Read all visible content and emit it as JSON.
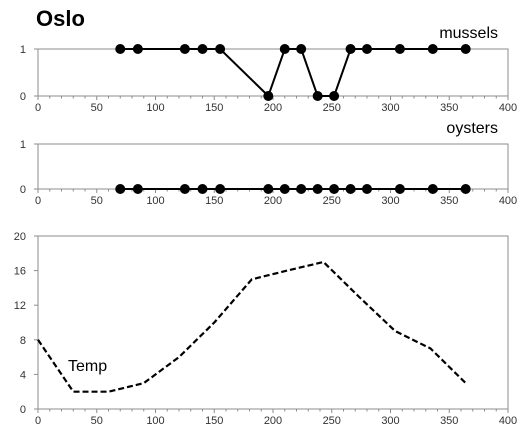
{
  "title": "Oslo",
  "chart_data": [
    {
      "type": "line",
      "name": "mussels",
      "label": "mussels",
      "x": [
        70,
        85,
        125,
        140,
        155,
        196,
        210,
        224,
        238,
        252,
        266,
        280,
        308,
        336,
        364
      ],
      "y": [
        1,
        1,
        1,
        1,
        1,
        0,
        1,
        1,
        0,
        0,
        1,
        1,
        1,
        1,
        1
      ],
      "xlim": [
        0,
        400
      ],
      "ylim": [
        0,
        1
      ],
      "xticks": [
        0,
        50,
        100,
        150,
        200,
        250,
        300,
        350,
        400
      ],
      "yticks": [
        0,
        1
      ],
      "line_style": "solid",
      "markers": true,
      "grid": false
    },
    {
      "type": "line",
      "name": "oysters",
      "label": "oysters",
      "x": [
        70,
        85,
        125,
        140,
        155,
        196,
        210,
        224,
        238,
        252,
        266,
        280,
        308,
        336,
        364
      ],
      "y": [
        0,
        0,
        0,
        0,
        0,
        0,
        0,
        0,
        0,
        0,
        0,
        0,
        0,
        0,
        0
      ],
      "xlim": [
        0,
        400
      ],
      "ylim": [
        0,
        1
      ],
      "xticks": [
        0,
        50,
        100,
        150,
        200,
        250,
        300,
        350,
        400
      ],
      "yticks": [
        0,
        1
      ],
      "line_style": "solid",
      "markers": true,
      "grid": false
    },
    {
      "type": "line",
      "name": "Temp",
      "label": "Temp",
      "x": [
        0,
        30,
        60,
        90,
        120,
        150,
        182,
        212,
        243,
        273,
        304,
        334,
        364
      ],
      "y": [
        8,
        2,
        2,
        3,
        6,
        10,
        15,
        16,
        17,
        13,
        9,
        7,
        3
      ],
      "xlim": [
        0,
        400
      ],
      "ylim": [
        0,
        20
      ],
      "xticks": [
        0,
        50,
        100,
        150,
        200,
        250,
        300,
        350,
        400
      ],
      "yticks": [
        0,
        4,
        8,
        12,
        16,
        20
      ],
      "line_style": "dashed",
      "markers": false,
      "grid": false
    }
  ]
}
